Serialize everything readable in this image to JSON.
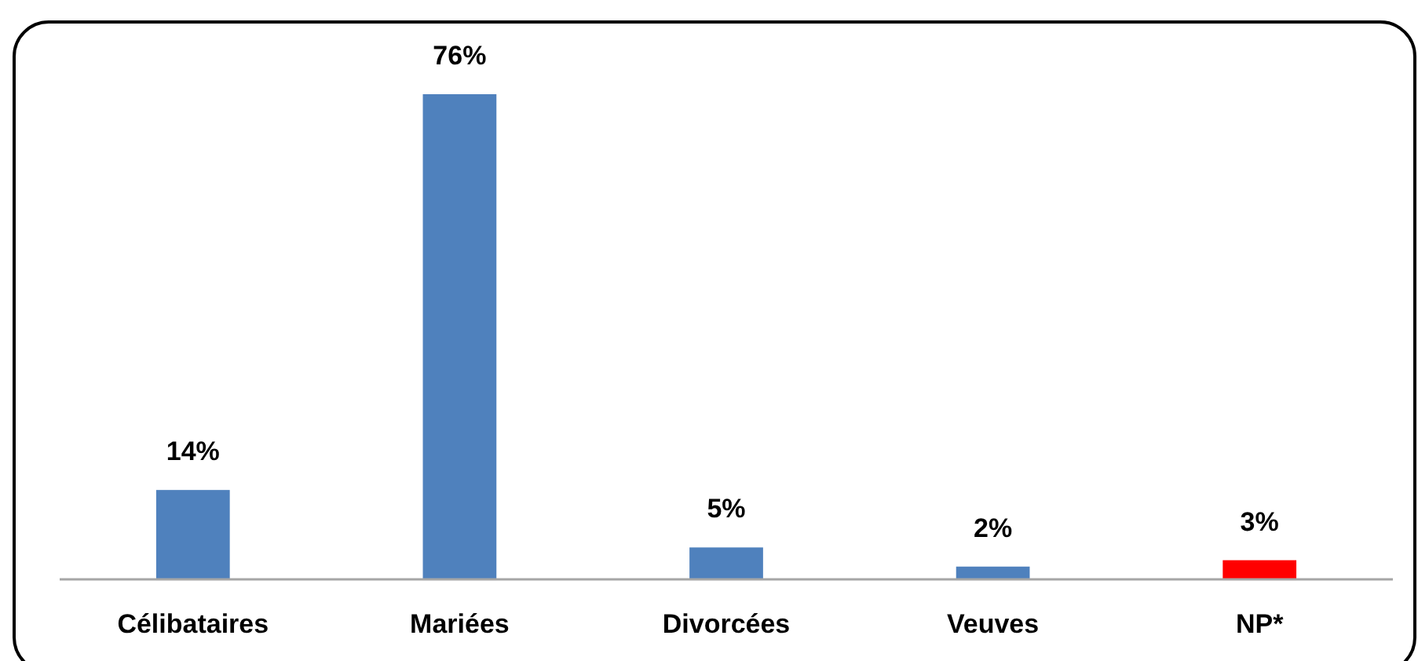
{
  "chart_data": {
    "type": "bar",
    "categories": [
      "Célibataires",
      "Mariées",
      "Divorcées",
      "Veuves",
      "NP*"
    ],
    "values": [
      14,
      76,
      5,
      2,
      3
    ],
    "colors": [
      "#4f81bd",
      "#4f81bd",
      "#4f81bd",
      "#4f81bd",
      "#ff0000"
    ],
    "value_labels": [
      "14%",
      "76%",
      "5%",
      "2%",
      "3%"
    ]
  }
}
